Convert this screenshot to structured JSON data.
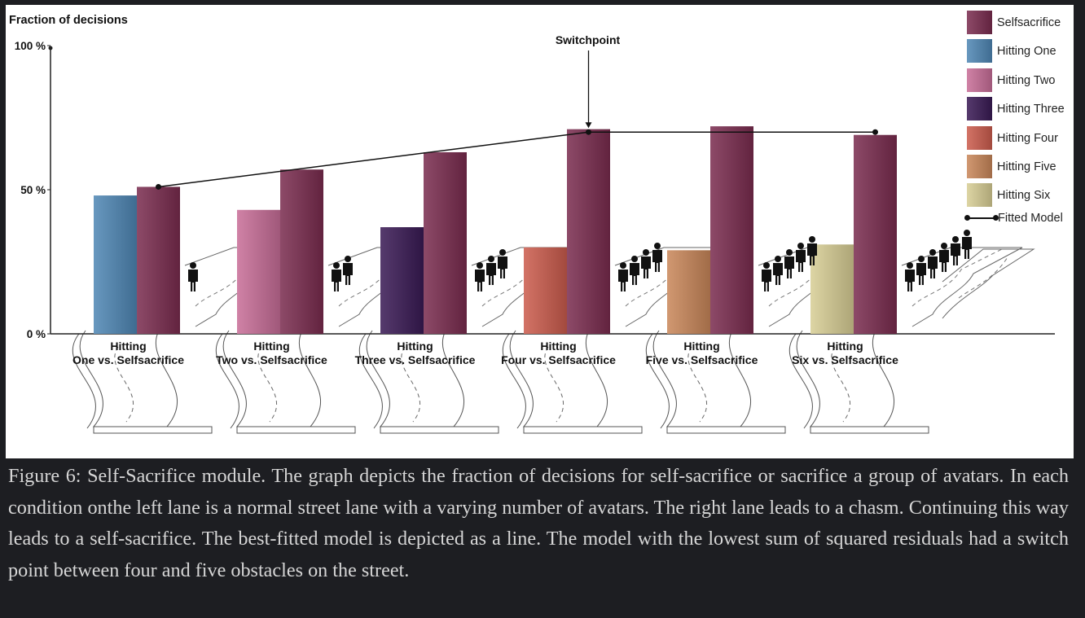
{
  "chart_data": {
    "type": "bar",
    "ylabel": "Fraction of decisions",
    "yticks": [
      "0 %",
      "50 %",
      "100 %"
    ],
    "ylim": [
      0,
      100
    ],
    "categories": [
      [
        "Hitting",
        "One vs. Selfsacrifice"
      ],
      [
        "Hitting",
        "Two vs. Selfsacrifice"
      ],
      [
        "Hitting",
        "Three vs. Selfsacrifice"
      ],
      [
        "Hitting",
        "Four vs. Selfsacrifice"
      ],
      [
        "Hitting",
        "Five vs. Selfsacrifice"
      ],
      [
        "Hitting",
        "Six vs. Selfsacrifice"
      ]
    ],
    "hitting": [
      {
        "name": "Hitting One",
        "value": 48,
        "color": "#4f87b5"
      },
      {
        "name": "Hitting Two",
        "value": 43,
        "color": "#c86e98"
      },
      {
        "name": "Hitting Three",
        "value": 37,
        "color": "#3a1a55"
      },
      {
        "name": "Hitting Four",
        "value": 30,
        "color": "#cc5c4d"
      },
      {
        "name": "Hitting Five",
        "value": 29,
        "color": "#c9875a"
      },
      {
        "name": "Hitting Six",
        "value": 31,
        "color": "#d8ce95"
      }
    ],
    "selfsacrifice": {
      "name": "Selfsacrifice",
      "values": [
        51,
        57,
        63,
        71,
        72,
        69
      ],
      "color": "#7a2c4f"
    },
    "fitted_model": {
      "name": "Fitted Model",
      "x": [
        0,
        3,
        5
      ],
      "values": [
        51,
        70,
        70
      ]
    },
    "avatar_counts": [
      1,
      2,
      3,
      4,
      5,
      6
    ],
    "annotation": "Switchpoint",
    "legend": [
      {
        "label": "Selfsacrifice",
        "color": "#7a2c4f",
        "kind": "swatch"
      },
      {
        "label": "Hitting One",
        "color": "#4f87b5",
        "kind": "swatch"
      },
      {
        "label": "Hitting Two",
        "color": "#c86e98",
        "kind": "swatch"
      },
      {
        "label": "Hitting Three",
        "color": "#3a1a55",
        "kind": "swatch"
      },
      {
        "label": "Hitting Four",
        "color": "#cc5c4d",
        "kind": "swatch"
      },
      {
        "label": "Hitting Five",
        "color": "#c9875a",
        "kind": "swatch"
      },
      {
        "label": "Hitting Six",
        "color": "#d8ce95",
        "kind": "swatch"
      },
      {
        "label": "Fitted Model",
        "kind": "line"
      }
    ]
  },
  "caption": "Figure 6: Self-Sacrifice module. The graph depicts the fraction of decisions for self-sacrifice or sacrifice a group of avatars. In each condition onthe left lane is a normal street lane with a varying number of avatars. The right lane leads to a chasm. Continuing this way leads to a self-sacrifice. The best-fitted model is depicted as a line. The model with the lowest sum of squared residuals had a switch point between four and five obstacles on the street."
}
